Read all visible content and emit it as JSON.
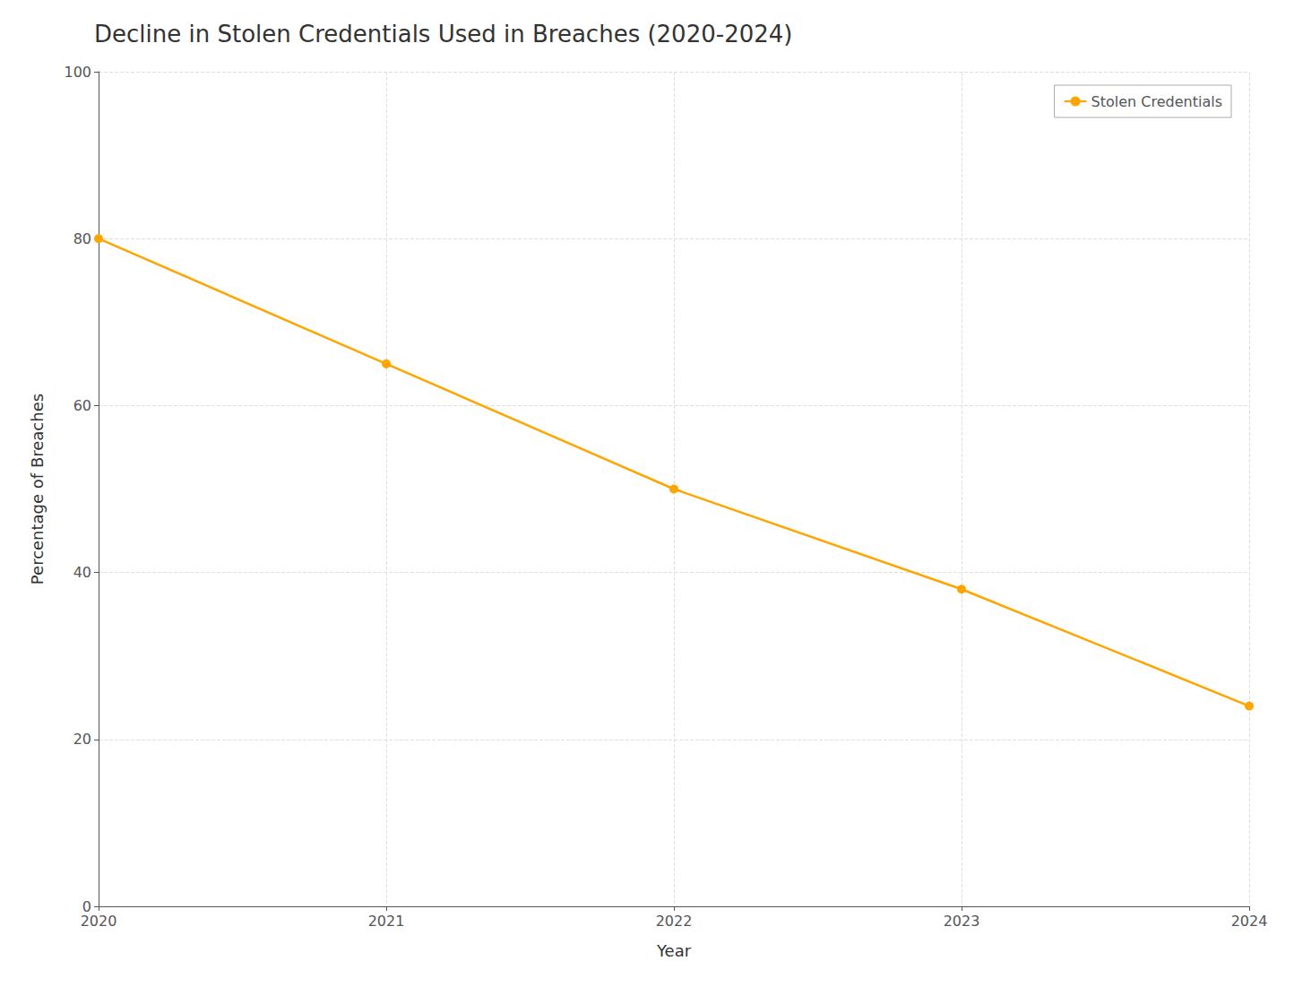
{
  "chart_data": {
    "type": "line",
    "title": "Decline in Stolen Credentials Used in Breaches (2020-2024)",
    "xlabel": "Year",
    "ylabel": "Percentage of Breaches",
    "x": [
      2020,
      2021,
      2022,
      2023,
      2024
    ],
    "series": [
      {
        "name": "Stolen Credentials",
        "color": "#FFA500",
        "marker": "circle",
        "values": [
          80,
          65,
          50,
          38,
          24
        ]
      }
    ],
    "xlim": [
      2020,
      2024
    ],
    "xticks": [
      2020,
      2021,
      2022,
      2023,
      2024
    ],
    "ylim": [
      0,
      100
    ],
    "yticks": [
      0,
      20,
      40,
      60,
      80,
      100
    ],
    "grid": true,
    "legend": "upper right"
  }
}
